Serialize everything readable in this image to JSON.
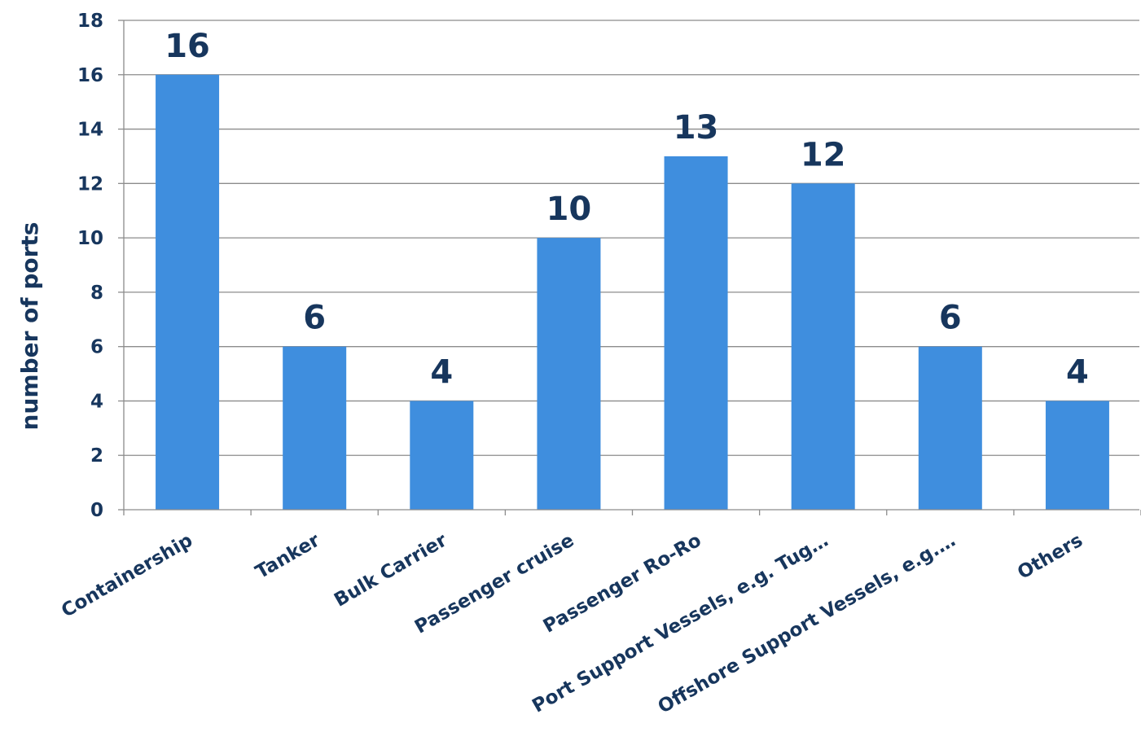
{
  "chart_data": {
    "type": "bar",
    "title": "",
    "xlabel": "",
    "ylabel": "number of ports",
    "categories": [
      "Containership",
      "Tanker",
      "Bulk Carrier",
      "Passenger cruise",
      "Passenger Ro-Ro",
      "Port Support Vessels, e.g. Tug…",
      "Offshore Support Vessels, e.g.…",
      "Others"
    ],
    "values": [
      16,
      6,
      4,
      10,
      13,
      12,
      6,
      4
    ],
    "data_labels": [
      "16",
      "6",
      "4",
      "10",
      "13",
      "12",
      "6",
      "4"
    ],
    "ylim": [
      0,
      18
    ],
    "yticks": [
      0,
      2,
      4,
      6,
      8,
      10,
      12,
      14,
      16,
      18
    ],
    "grid": true,
    "legend": "none",
    "colors": {
      "bar": "#3f8ede",
      "text": "#17365d",
      "grid": "#8c8c8c"
    }
  }
}
